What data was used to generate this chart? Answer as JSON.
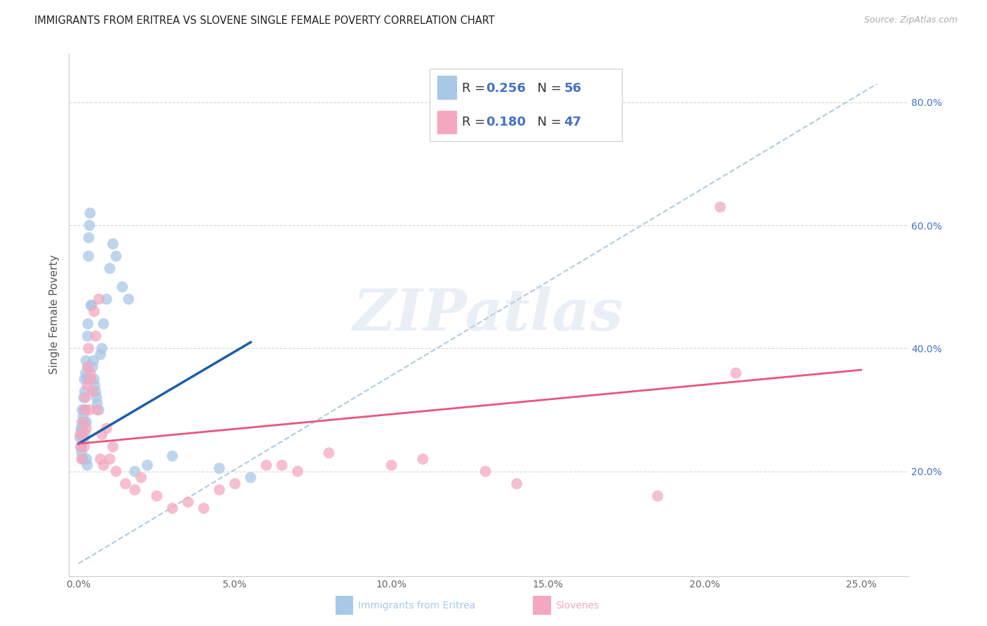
{
  "title": "IMMIGRANTS FROM ERITREA VS SLOVENE SINGLE FEMALE POVERTY CORRELATION CHART",
  "source": "Source: ZipAtlas.com",
  "ylabel": "Single Female Poverty",
  "x_tick_labels": [
    "0.0%",
    "5.0%",
    "10.0%",
    "15.0%",
    "20.0%",
    "25.0%"
  ],
  "x_tick_values": [
    0.0,
    5.0,
    10.0,
    15.0,
    20.0,
    25.0
  ],
  "y_tick_labels": [
    "20.0%",
    "40.0%",
    "60.0%",
    "80.0%"
  ],
  "y_tick_values": [
    20.0,
    40.0,
    60.0,
    80.0
  ],
  "xlim": [
    -0.3,
    26.5
  ],
  "ylim": [
    3.0,
    88.0
  ],
  "blue_R": "0.256",
  "blue_N": "56",
  "pink_R": "0.180",
  "pink_N": "47",
  "blue_label": "Immigrants from Eritrea",
  "pink_label": "Slovenes",
  "watermark_text": "ZIPatlas",
  "blue_scatter_color": "#a8c8e8",
  "pink_scatter_color": "#f4a8c0",
  "blue_line_color": "#1a5fa8",
  "pink_line_color": "#e85580",
  "dashed_line_color": "#b0cce0",
  "legend_text_color": "#333333",
  "legend_value_color": "#4472c4",
  "right_axis_color": "#4472c4",
  "grid_color": "#d8d8d8",
  "background_color": "#ffffff",
  "blue_scatter_x": [
    0.05,
    0.07,
    0.08,
    0.1,
    0.1,
    0.11,
    0.12,
    0.13,
    0.14,
    0.15,
    0.15,
    0.16,
    0.17,
    0.18,
    0.19,
    0.2,
    0.2,
    0.21,
    0.22,
    0.23,
    0.24,
    0.25,
    0.26,
    0.27,
    0.28,
    0.29,
    0.3,
    0.3,
    0.32,
    0.33,
    0.35,
    0.37,
    0.4,
    0.42,
    0.45,
    0.48,
    0.5,
    0.52,
    0.55,
    0.58,
    0.6,
    0.65,
    0.7,
    0.75,
    0.8,
    0.9,
    1.0,
    1.1,
    1.2,
    1.4,
    1.6,
    1.8,
    2.2,
    3.0,
    4.5,
    5.5
  ],
  "blue_scatter_y": [
    25.5,
    24.0,
    27.0,
    26.5,
    23.0,
    28.0,
    30.0,
    27.0,
    25.5,
    22.0,
    29.0,
    25.0,
    32.0,
    30.0,
    35.0,
    33.0,
    28.0,
    26.0,
    30.0,
    36.0,
    38.0,
    28.0,
    22.0,
    35.0,
    21.0,
    42.0,
    37.0,
    44.0,
    55.0,
    58.0,
    60.0,
    62.0,
    47.0,
    47.0,
    37.0,
    38.0,
    35.0,
    34.0,
    33.0,
    32.0,
    31.0,
    30.0,
    39.0,
    40.0,
    44.0,
    48.0,
    53.0,
    57.0,
    55.0,
    50.0,
    48.0,
    20.0,
    21.0,
    22.5,
    20.5,
    19.0
  ],
  "pink_scatter_x": [
    0.06,
    0.08,
    0.1,
    0.12,
    0.15,
    0.18,
    0.2,
    0.22,
    0.25,
    0.28,
    0.3,
    0.32,
    0.35,
    0.38,
    0.4,
    0.45,
    0.5,
    0.55,
    0.6,
    0.65,
    0.7,
    0.75,
    0.8,
    0.9,
    1.0,
    1.1,
    1.2,
    1.5,
    1.8,
    2.0,
    2.5,
    3.0,
    3.5,
    4.0,
    4.5,
    5.0,
    6.0,
    6.5,
    7.0,
    8.0,
    10.0,
    11.0,
    13.0,
    14.0,
    18.5,
    20.5,
    21.0
  ],
  "pink_scatter_y": [
    26.0,
    24.0,
    22.0,
    26.0,
    28.0,
    24.0,
    30.0,
    32.0,
    27.0,
    34.0,
    37.0,
    40.0,
    30.0,
    36.0,
    35.0,
    33.0,
    46.0,
    42.0,
    30.0,
    48.0,
    22.0,
    26.0,
    21.0,
    27.0,
    22.0,
    24.0,
    20.0,
    18.0,
    17.0,
    19.0,
    16.0,
    14.0,
    15.0,
    14.0,
    17.0,
    18.0,
    21.0,
    21.0,
    20.0,
    23.0,
    21.0,
    22.0,
    20.0,
    18.0,
    16.0,
    63.0,
    36.0
  ],
  "blue_line_x0": 0.0,
  "blue_line_y0": 24.5,
  "blue_line_x1": 5.5,
  "blue_line_y1": 41.0,
  "pink_line_x0": 0.0,
  "pink_line_y0": 24.5,
  "pink_line_x1": 25.0,
  "pink_line_y1": 36.5,
  "dashed_line_x0": 0.0,
  "dashed_line_y0": 5.0,
  "dashed_line_x1": 25.5,
  "dashed_line_y1": 83.0,
  "fig_width": 14.06,
  "fig_height": 8.92
}
